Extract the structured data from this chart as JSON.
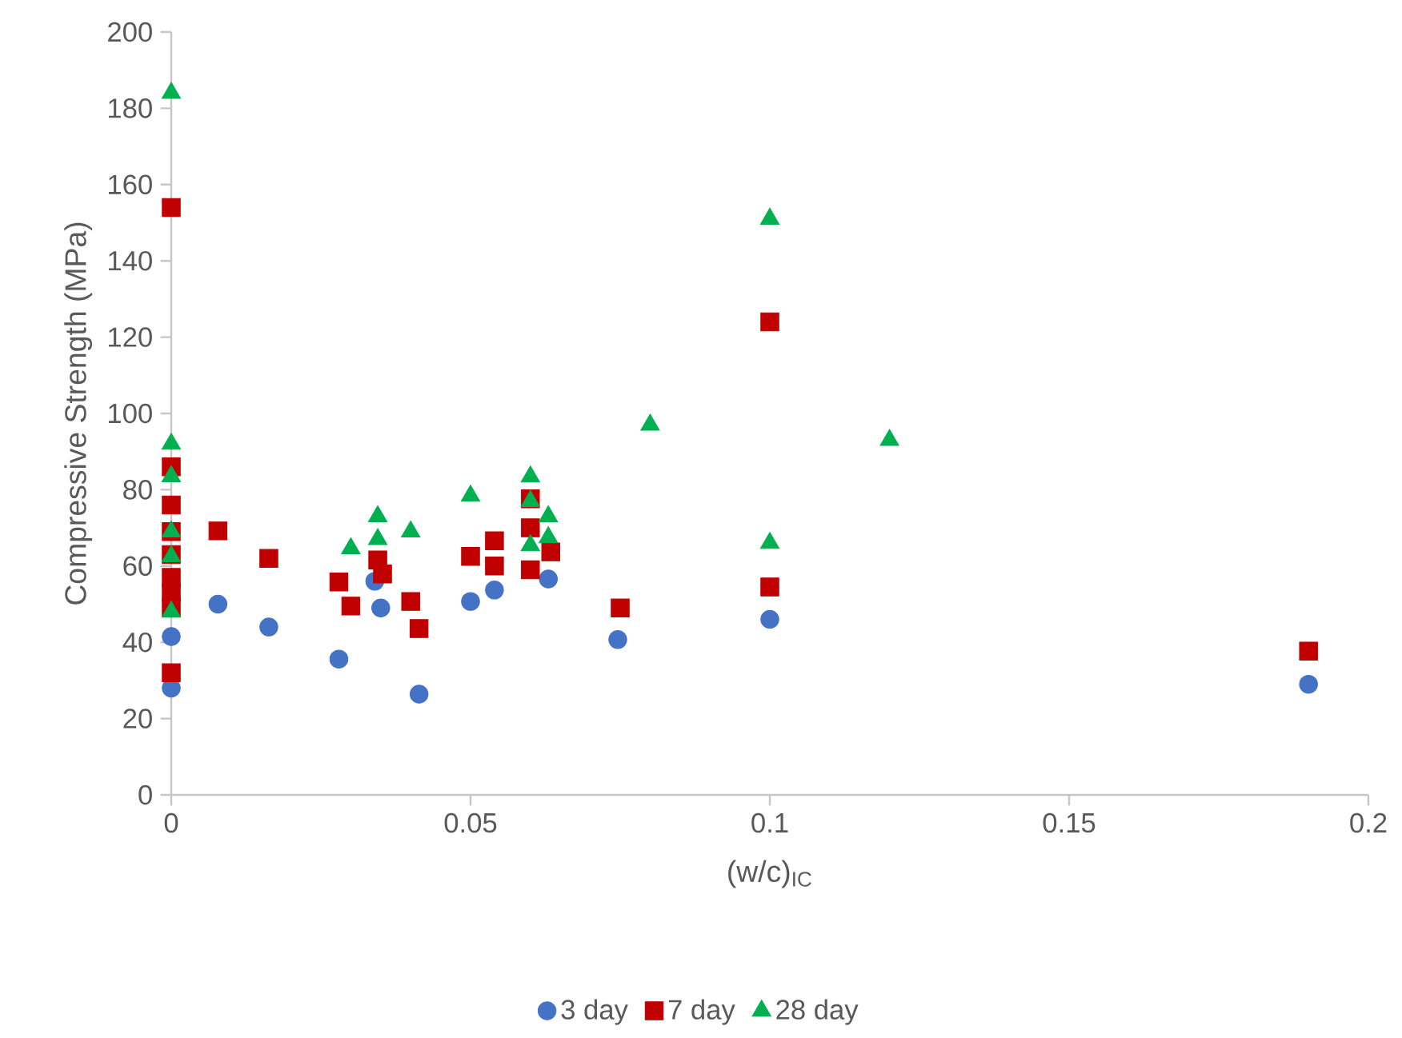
{
  "chart_data": {
    "type": "scatter",
    "xlabel": "(w/c)$_{IC}$",
    "ylabel": "Compressive Strength (MPa)",
    "xlim": [
      0,
      0.2
    ],
    "xticks": [
      0,
      0.05,
      0.1,
      0.15,
      0.2
    ],
    "ylim": [
      0,
      200
    ],
    "yticks": [
      0,
      20,
      40,
      60,
      80,
      100,
      120,
      140,
      160,
      180,
      200
    ],
    "grid": false,
    "legend": "bottom",
    "series": [
      {
        "name": "3 day",
        "color": "#4472c4",
        "marker": "circle",
        "x": [
          0,
          0,
          0.0078,
          0.0163,
          0.028,
          0.034,
          0.035,
          0.0414,
          0.05,
          0.054,
          0.063,
          0.0746,
          0.1,
          0.19
        ],
        "values": [
          41.5,
          28,
          50,
          44,
          35.6,
          56,
          49,
          26.4,
          50.7,
          53.7,
          56.6,
          40.7,
          46,
          29
        ]
      },
      {
        "name": "7 day",
        "color": "#c00000",
        "marker": "square",
        "x": [
          0,
          0,
          0,
          0,
          0,
          0,
          0,
          0,
          0,
          0.0078,
          0.0163,
          0.028,
          0.03,
          0.0345,
          0.0353,
          0.04,
          0.0414,
          0.05,
          0.054,
          0.054,
          0.06,
          0.06,
          0.06,
          0.0634,
          0.075,
          0.1,
          0.1,
          0.19
        ],
        "values": [
          154,
          86,
          76,
          69,
          63,
          57,
          53,
          49,
          32,
          69.2,
          62,
          55.8,
          49.5,
          61.6,
          57.9,
          50.7,
          43.6,
          62.5,
          66.6,
          60,
          77.6,
          70,
          59,
          63.7,
          49,
          124,
          54.5,
          37.7
        ]
      },
      {
        "name": "28 day",
        "color": "#00b050",
        "marker": "triangle",
        "x": [
          0,
          0,
          0,
          0,
          0,
          0,
          0.03,
          0.0345,
          0.0345,
          0.04,
          0.05,
          0.06,
          0.06,
          0.06,
          0.063,
          0.063,
          0.08,
          0.1,
          0.1,
          0.12
        ],
        "values": [
          184,
          92,
          83.5,
          69,
          62.5,
          48,
          64.6,
          73,
          67,
          69,
          78.4,
          83.4,
          77,
          65.4,
          73,
          67.5,
          97,
          151,
          66,
          93
        ]
      }
    ]
  }
}
